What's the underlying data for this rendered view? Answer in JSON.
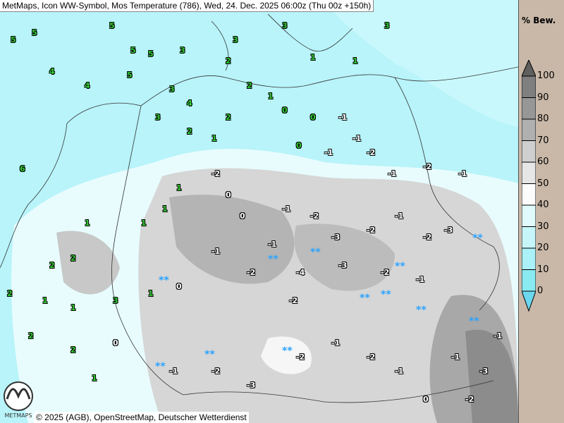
{
  "title": "MetMaps, Icon WW-Symbol, Mos Temperature (786), Wed, 24. Dec. 2025 06:00z (Thu 00z +150h)",
  "footer": "© 2025 (AGB), OpenStreetMap, Deutscher Wetterdienst",
  "logo_text": "METMAPS",
  "legend": {
    "title": "% Bew.",
    "ticks": [
      "100",
      "90",
      "80",
      "70",
      "60",
      "50",
      "40",
      "30",
      "20",
      "10",
      "0"
    ],
    "colors": [
      "#7f7f7f",
      "#979797",
      "#b0b0b0",
      "#cfcfcf",
      "#e6e6e6",
      "#fcfcfc",
      "#e0fafc",
      "#c6f6fa",
      "#aaf1f8",
      "#8aeaf2"
    ],
    "over_color": "#5f5f5f",
    "under_color": "#6cd8ee"
  },
  "symbols": {
    "snow": "**",
    "positive_color": "#33cc33",
    "negative_color": "#ffffff"
  },
  "stations": [
    "5",
    "5",
    "5",
    "4",
    "3",
    "3",
    "3",
    "2",
    "1",
    "1",
    "3",
    "4",
    "3",
    "5",
    "6",
    "5",
    "5",
    "4",
    "3",
    "2",
    "1",
    "2",
    "2",
    "1",
    "0",
    "0",
    "-1",
    "-1",
    "0",
    "-1",
    "-2",
    "-1",
    "-2",
    "-1",
    "-2",
    "0",
    "1",
    "1",
    "1",
    "1",
    "0",
    "-1",
    "-2",
    "-3",
    "-2",
    "-1",
    "-2",
    "-3",
    "-1",
    "-1",
    "-2",
    "-4",
    "-3",
    "-2",
    "-1",
    "0",
    "1",
    "2",
    "1",
    "2",
    "3",
    "2",
    "2",
    "1",
    "-1",
    "-2",
    "-3",
    "-2",
    "-1",
    "-2",
    "-1",
    "0",
    "-1",
    "-2",
    "-3",
    "-1",
    "-2",
    "2",
    "1",
    "0"
  ]
}
